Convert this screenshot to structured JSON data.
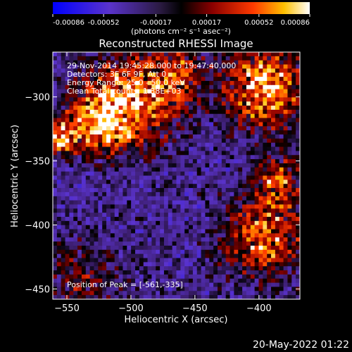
{
  "chart_data": {
    "type": "heatmap",
    "title": "Reconstructed RHESSI Image",
    "xlabel": "Heliocentric X (arcsec)",
    "ylabel": "Heliocentric Y (arcsec)",
    "xlim": [
      -561,
      -368
    ],
    "ylim": [
      -458,
      -265
    ],
    "x_ticks": [
      -550,
      -500,
      -450,
      -400
    ],
    "y_ticks": [
      -300,
      -350,
      -400,
      -450
    ],
    "colorbar": {
      "ticks": [
        "-0.00086",
        "-0.00052",
        "-0.00017",
        "0.00017",
        "0.00052",
        "0.00086"
      ],
      "unit_label": "(photons cm⁻² s⁻¹ asec⁻²)",
      "range": [
        -0.00086,
        0.00086
      ]
    },
    "info_lines": [
      "29-Nov-2014 19:45:28.000 to 19:47:40.000",
      "Detectors: 3F 6F 9F, Att 0",
      "Energy Range: 25.0 - 50.0 keV",
      "Clean    Total counts: 1.38E+03"
    ],
    "peak_label": "Position of Peak = [-561,-335]",
    "peak_position": [
      -561,
      -335
    ],
    "notes": "Pixelated flux map; bright (red/yellow) patches concentrated upper-left, upper-right and lower-right; purple/blue background elsewhere."
  },
  "timestamp": "20-May-2022 01:22",
  "colors": {
    "background": "#000000",
    "text": "#ffffff"
  }
}
